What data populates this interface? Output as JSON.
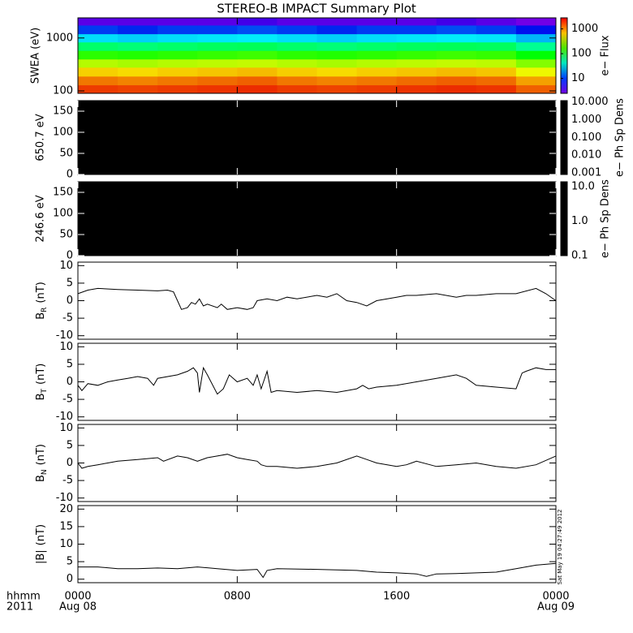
{
  "chart_data": [
    {
      "type": "heatmap",
      "title": "STEREO-B IMPACT Summary Plot",
      "ylabel": "SWEA (eV)",
      "log": true,
      "ylim": [
        90,
        2400
      ],
      "yticks": [
        100,
        1000
      ],
      "xbins": [
        0,
        2,
        4,
        6,
        8,
        10,
        12,
        14,
        16,
        18,
        20,
        22,
        24
      ],
      "ybins": [
        90,
        130,
        190,
        280,
        400,
        580,
        840,
        1200,
        1750,
        2400
      ],
      "z": [
        [
          1900,
          1800,
          1900,
          2000,
          2100,
          1900,
          1800,
          1900,
          2000,
          2100,
          2000,
          1500
        ],
        [
          1300,
          1200,
          1300,
          1400,
          1500,
          1300,
          1200,
          1300,
          1400,
          1500,
          1400,
          1000
        ],
        [
          750,
          700,
          760,
          800,
          850,
          760,
          700,
          760,
          800,
          850,
          800,
          550
        ],
        [
          380,
          350,
          380,
          400,
          420,
          380,
          350,
          380,
          400,
          420,
          400,
          280
        ],
        [
          160,
          150,
          160,
          170,
          180,
          160,
          150,
          160,
          170,
          180,
          170,
          120
        ],
        [
          65,
          60,
          65,
          70,
          72,
          65,
          60,
          65,
          70,
          72,
          70,
          50
        ],
        [
          22,
          20,
          22,
          23,
          24,
          22,
          20,
          22,
          23,
          24,
          23,
          17
        ],
        [
          8,
          7,
          8,
          8,
          9,
          8,
          7,
          8,
          8,
          9,
          8,
          6
        ],
        [
          3,
          3,
          3,
          3,
          3.5,
          3,
          3,
          3,
          3,
          3.5,
          3,
          2.5
        ]
      ],
      "colorbar": {
        "label": "e− Flux",
        "log": true,
        "lim": [
          2.5,
          2800
        ],
        "ticks": [
          10,
          100,
          1000
        ]
      }
    },
    {
      "type": "blank",
      "ylabel": "650.7 eV",
      "ylim": [
        0,
        175
      ],
      "yticks": [
        0,
        50,
        100,
        150
      ],
      "colorbar": {
        "label": "e− Ph Sp Dens",
        "log": true,
        "lim": [
          0.0008,
          12
        ],
        "ticks": [
          {
            "value": 10,
            "label": "10.000"
          },
          {
            "value": 1,
            "label": "1.000"
          },
          {
            "value": 0.1,
            "label": "0.100"
          },
          {
            "value": 0.01,
            "label": "0.010"
          },
          {
            "value": 0.001,
            "label": "0.001"
          }
        ]
      }
    },
    {
      "type": "blank",
      "ylabel": "246.6 eV",
      "ylim": [
        0,
        175
      ],
      "yticks": [
        0,
        50,
        100,
        150
      ],
      "colorbar": {
        "label": "e− Ph Sp Dens",
        "log": true,
        "lim": [
          0.1,
          14
        ],
        "ticks": [
          {
            "value": 10,
            "label": "10.0"
          },
          {
            "value": 1,
            "label": "1.0"
          },
          {
            "value": 0.1,
            "label": "0.1"
          }
        ]
      }
    },
    {
      "type": "line",
      "ylabel": {
        "text": "B",
        "sub": "R",
        "unit": "(nT)"
      },
      "ylim": [
        -11,
        11
      ],
      "yticks": [
        -10,
        -5,
        0,
        5,
        10
      ],
      "x": [
        0,
        0.5,
        1,
        2,
        3,
        4,
        4.5,
        4.8,
        5,
        5.2,
        5.5,
        5.7,
        5.9,
        6.1,
        6.3,
        6.5,
        7,
        7.2,
        7.5,
        8,
        8.5,
        8.8,
        9,
        9.5,
        10,
        10.5,
        11,
        12,
        12.5,
        13,
        13.5,
        14,
        14.5,
        15,
        16,
        16.5,
        17,
        18,
        19,
        19.5,
        20,
        21,
        22,
        23,
        23.5,
        24
      ],
      "values": [
        2,
        3,
        3.5,
        3.2,
        3,
        2.8,
        3,
        2.5,
        0,
        -2.5,
        -2,
        -0.5,
        -1,
        0.5,
        -1.5,
        -1,
        -2,
        -1,
        -2.5,
        -2,
        -2.5,
        -2,
        0,
        0.5,
        0,
        1,
        0.5,
        1.5,
        1,
        2,
        0,
        -0.5,
        -1.5,
        0,
        1,
        1.5,
        1.5,
        2,
        1,
        1.5,
        1.5,
        2,
        2,
        3.5,
        2,
        0
      ]
    },
    {
      "type": "line",
      "ylabel": {
        "text": "B",
        "sub": "T",
        "unit": "(nT)"
      },
      "ylim": [
        -11,
        11
      ],
      "yticks": [
        -10,
        -5,
        0,
        5,
        10
      ],
      "x": [
        0,
        0.2,
        0.5,
        1,
        1.5,
        2,
        2.5,
        3,
        3.5,
        3.8,
        4,
        5,
        5.5,
        5.8,
        6,
        6.1,
        6.3,
        6.5,
        7,
        7.3,
        7.6,
        8,
        8.5,
        8.8,
        9,
        9.2,
        9.5,
        9.7,
        10,
        11,
        12,
        13,
        14,
        14.3,
        14.6,
        15,
        16,
        17,
        18,
        19,
        19.5,
        20,
        21,
        22,
        22.3,
        22.5,
        23,
        23.5,
        24
      ],
      "values": [
        -1,
        -2.5,
        -0.5,
        -1,
        0,
        0.5,
        1,
        1.5,
        1,
        -1,
        1,
        2,
        3,
        4,
        2.5,
        -3,
        4,
        2,
        -3.5,
        -2,
        2,
        0,
        1,
        -1,
        2,
        -2,
        3,
        -3,
        -2.5,
        -3,
        -2.5,
        -3,
        -2,
        -1,
        -2,
        -1.5,
        -1,
        0,
        1,
        2,
        1,
        -1,
        -1.5,
        -2,
        2.5,
        3,
        4,
        3.5,
        3.5
      ]
    },
    {
      "type": "line",
      "ylabel": {
        "text": "B",
        "sub": "N",
        "unit": "(nT)"
      },
      "ylim": [
        -11,
        11
      ],
      "yticks": [
        -10,
        -5,
        0,
        5,
        10
      ],
      "x": [
        0,
        0.2,
        0.5,
        1,
        1.5,
        2,
        3,
        4,
        4.3,
        5,
        5.5,
        6,
        6.5,
        7,
        7.5,
        8,
        8.5,
        9,
        9.2,
        9.5,
        10,
        11,
        12,
        13,
        14,
        14.5,
        15,
        16,
        16.5,
        17,
        18,
        19,
        20,
        21,
        22,
        23,
        24
      ],
      "values": [
        0,
        -1.5,
        -1,
        -0.5,
        0,
        0.5,
        1,
        1.5,
        0.5,
        2,
        1.5,
        0.5,
        1.5,
        2,
        2.5,
        1.5,
        1,
        0.5,
        -0.5,
        -1,
        -1,
        -1.5,
        -1,
        0,
        2,
        1,
        0,
        -1,
        -0.5,
        0.5,
        -1,
        -0.5,
        0,
        -1,
        -1.5,
        -0.5,
        2
      ]
    },
    {
      "type": "line",
      "ylabel": {
        "text": "|B|",
        "unit": "(nT)"
      },
      "ylim": [
        -1,
        21
      ],
      "yticks": [
        0,
        5,
        10,
        15,
        20
      ],
      "x": [
        0,
        1,
        2,
        3,
        4,
        5,
        6,
        7,
        8,
        9,
        9.3,
        9.5,
        10,
        12,
        14,
        15,
        16,
        17,
        17.5,
        18,
        19,
        20,
        21,
        22,
        23,
        24
      ],
      "values": [
        3.5,
        3.5,
        3,
        3,
        3.2,
        3,
        3.5,
        3,
        2.5,
        2.8,
        0.5,
        2.5,
        3,
        2.8,
        2.5,
        2,
        1.8,
        1.5,
        0.8,
        1.5,
        1.6,
        1.8,
        2,
        3,
        4,
        4.5
      ]
    }
  ],
  "x_axis": {
    "xlim": [
      0,
      24
    ],
    "xticks": [
      {
        "value": 0,
        "label": "0000"
      },
      {
        "value": 8,
        "label": "0800"
      },
      {
        "value": 16,
        "label": "1600"
      },
      {
        "value": 24,
        "label": "0000"
      }
    ],
    "dates": [
      "Aug 08",
      null,
      null,
      "Aug 09"
    ],
    "unit": "hhmm",
    "year": "2011"
  },
  "timestamp": "Sat May 19 04:27:49 2012"
}
